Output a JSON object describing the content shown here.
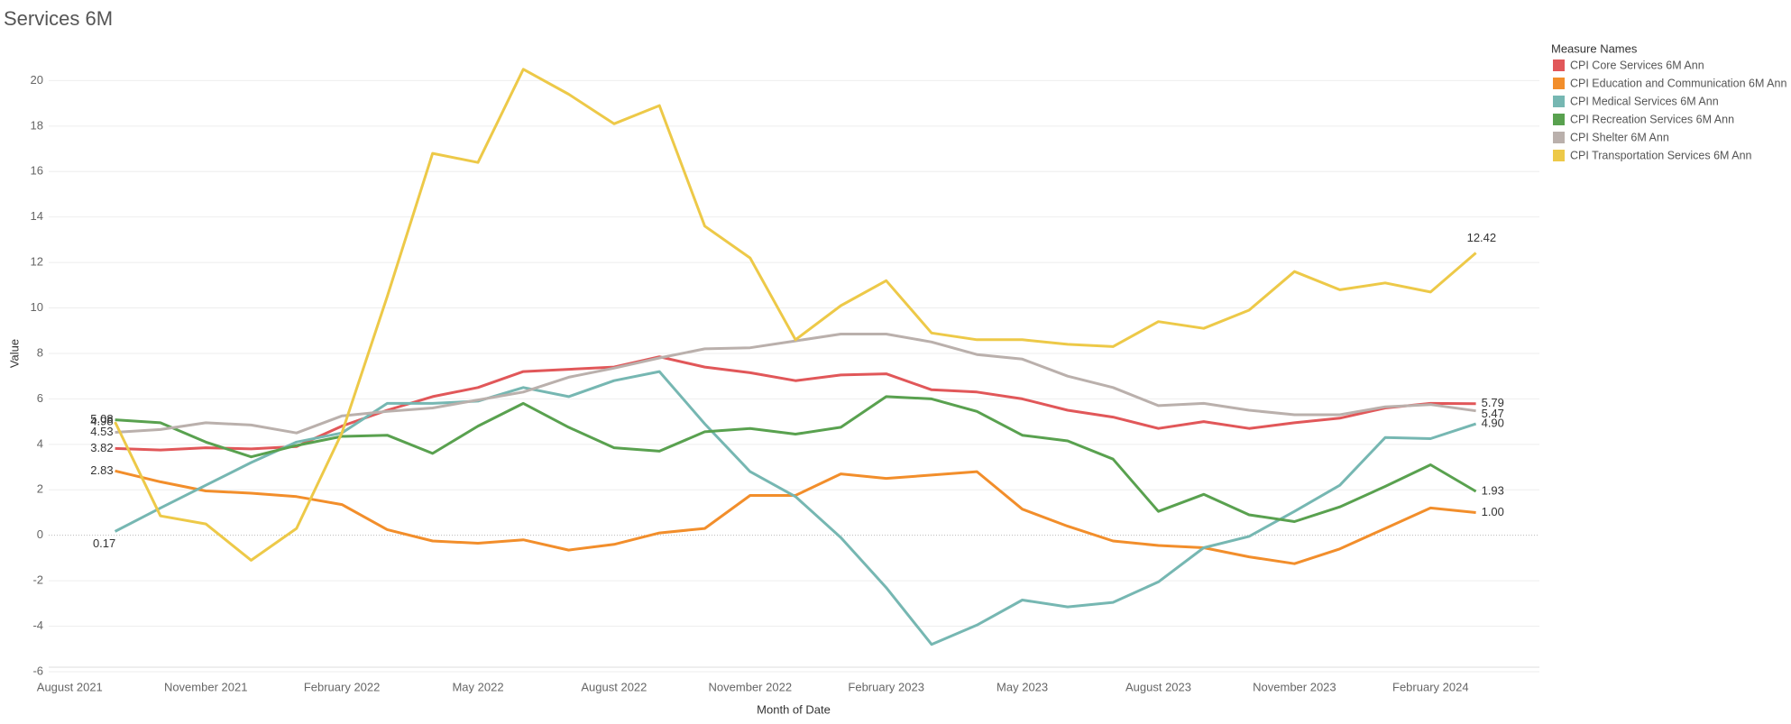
{
  "chart_data": {
    "type": "line",
    "title": "Services 6M",
    "x_label": "Month of Date",
    "y_label": "Value",
    "legend_title": "Measure Names",
    "categories": [
      "August 2021",
      null,
      null,
      "November 2021",
      null,
      null,
      "February 2022",
      null,
      null,
      "May 2022",
      null,
      null,
      "August 2022",
      null,
      null,
      "November 2022",
      null,
      null,
      "February 2023",
      null,
      null,
      "May 2023",
      null,
      null,
      "August 2023",
      null,
      null,
      "November 2023",
      null,
      null,
      "February 2024",
      null
    ],
    "ylim": [
      -6.2,
      21.8
    ],
    "yticks": [
      -6,
      -4,
      -2,
      0,
      2,
      4,
      6,
      8,
      10,
      12,
      14,
      16,
      18,
      20
    ],
    "grid": true,
    "series": [
      {
        "name": "CPI Core Services 6M Ann",
        "color": "#e15759",
        "values": [
          null,
          3.82,
          3.75,
          3.85,
          3.8,
          3.9,
          4.8,
          5.5,
          6.1,
          6.5,
          7.2,
          7.3,
          7.4,
          7.85,
          7.4,
          7.15,
          6.8,
          7.05,
          7.1,
          6.4,
          6.3,
          6.0,
          5.5,
          5.2,
          4.7,
          5.0,
          4.7,
          4.95,
          5.15,
          5.6,
          5.8,
          5.79
        ],
        "value_labels": [
          null,
          "3.82",
          null,
          null,
          null,
          null,
          null,
          null,
          null,
          null,
          null,
          null,
          null,
          null,
          null,
          null,
          null,
          null,
          null,
          null,
          null,
          null,
          null,
          null,
          null,
          null,
          null,
          null,
          null,
          null,
          null,
          "5.79"
        ]
      },
      {
        "name": "CPI Education and Communication  6M Ann",
        "color": "#f28e2b",
        "values": [
          null,
          2.83,
          2.35,
          1.95,
          1.85,
          1.7,
          1.35,
          0.25,
          -0.25,
          -0.35,
          -0.2,
          -0.65,
          -0.4,
          0.1,
          0.3,
          1.75,
          1.75,
          2.7,
          2.5,
          2.65,
          2.8,
          1.15,
          0.4,
          -0.25,
          -0.45,
          -0.55,
          -0.95,
          -1.25,
          -0.6,
          0.3,
          1.2,
          1
        ],
        "value_labels": [
          null,
          "2.83",
          null,
          null,
          null,
          null,
          null,
          null,
          null,
          null,
          null,
          null,
          null,
          null,
          null,
          null,
          null,
          null,
          null,
          null,
          null,
          null,
          null,
          null,
          null,
          null,
          null,
          null,
          null,
          null,
          null,
          "1.00"
        ]
      },
      {
        "name": "CPI Medical Services 6M Ann",
        "color": "#76b7b2",
        "values": [
          null,
          0.17,
          1.2,
          2.2,
          3.2,
          4.1,
          4.5,
          5.8,
          5.8,
          5.9,
          6.5,
          6.1,
          6.8,
          7.2,
          4.9,
          2.8,
          1.7,
          -0.1,
          -2.3,
          -4.8,
          -3.95,
          -2.85,
          -3.15,
          -2.95,
          -2.05,
          -0.55,
          -0.05,
          1.05,
          2.2,
          4.3,
          4.25,
          4.9
        ],
        "value_labels": [
          null,
          "0.17",
          null,
          null,
          null,
          null,
          null,
          null,
          null,
          null,
          null,
          null,
          null,
          null,
          null,
          null,
          null,
          null,
          null,
          null,
          null,
          null,
          null,
          null,
          null,
          null,
          null,
          null,
          null,
          null,
          null,
          "4.90"
        ]
      },
      {
        "name": "CPI Recreation Services 6M Ann",
        "color": "#59a14f",
        "values": [
          null,
          5.08,
          4.95,
          4.1,
          3.45,
          3.95,
          4.35,
          4.4,
          3.6,
          4.8,
          5.8,
          4.75,
          3.85,
          3.7,
          4.55,
          4.7,
          4.45,
          4.75,
          6.1,
          6.0,
          5.45,
          4.4,
          4.15,
          3.35,
          1.05,
          1.8,
          0.9,
          0.6,
          1.25,
          2.15,
          3.1,
          1.93
        ],
        "value_labels": [
          null,
          "5.08",
          null,
          null,
          null,
          null,
          null,
          null,
          null,
          null,
          null,
          null,
          null,
          null,
          null,
          null,
          null,
          null,
          null,
          null,
          null,
          null,
          null,
          null,
          null,
          null,
          null,
          null,
          null,
          null,
          null,
          "1.93"
        ]
      },
      {
        "name": "CPI Shelter 6M Ann",
        "color": "#bab0ac",
        "values": [
          null,
          4.53,
          4.65,
          4.95,
          4.85,
          4.5,
          5.25,
          5.45,
          5.6,
          5.95,
          6.3,
          6.95,
          7.35,
          7.8,
          8.2,
          8.25,
          8.55,
          8.85,
          8.85,
          8.5,
          7.95,
          7.75,
          7.0,
          6.5,
          5.7,
          5.8,
          5.5,
          5.3,
          5.3,
          5.65,
          5.75,
          5.47
        ],
        "value_labels": [
          null,
          "4.53",
          null,
          null,
          null,
          null,
          null,
          null,
          null,
          null,
          null,
          null,
          null,
          null,
          null,
          null,
          null,
          null,
          null,
          null,
          null,
          null,
          null,
          null,
          null,
          null,
          null,
          null,
          null,
          null,
          null,
          "5.47"
        ]
      },
      {
        "name": "CPI Transportation Services 6M Ann",
        "color": "#edc948",
        "values": [
          null,
          4.98,
          0.85,
          0.5,
          -1.1,
          0.3,
          4.5,
          10.5,
          16.8,
          16.4,
          20.5,
          19.4,
          18.1,
          18.9,
          13.6,
          12.2,
          8.6,
          10.1,
          11.2,
          8.9,
          8.6,
          8.6,
          8.4,
          8.3,
          9.4,
          9.1,
          9.9,
          11.6,
          10.8,
          11.1,
          10.7,
          12.42
        ],
        "value_labels": [
          null,
          "4.98",
          null,
          null,
          null,
          null,
          null,
          null,
          null,
          null,
          null,
          null,
          null,
          null,
          null,
          null,
          null,
          null,
          null,
          null,
          null,
          null,
          null,
          null,
          null,
          null,
          null,
          null,
          null,
          null,
          null,
          "12.42"
        ]
      }
    ]
  }
}
